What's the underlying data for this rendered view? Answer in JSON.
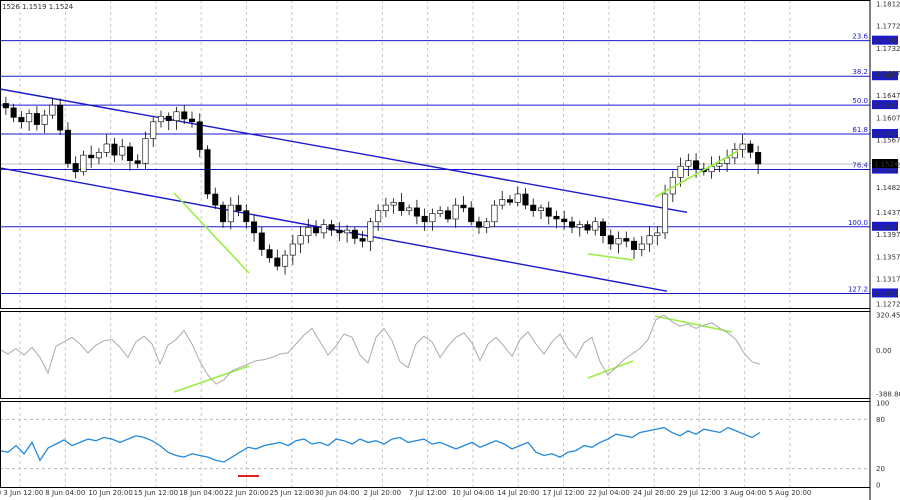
{
  "header": {
    "ohlc": "1526 1.1519 1.1524"
  },
  "colors": {
    "candle": "#000000",
    "channel": "#1a1acc",
    "level": "#1a1acc",
    "divergence": "#99ee44",
    "cci": "#aaaaaa",
    "rsi": "#2288dd",
    "rsi_marker": "#dd2222",
    "tag_bg": "#1a1acc"
  },
  "chart_data": [
    {
      "type": "candlestick",
      "ylim": [
        1.1272,
        1.1812
      ],
      "yticks": [
        "1.1812",
        "1.1772",
        "1.1732",
        "1.1687",
        "1.1647",
        "1.1607",
        "1.1567",
        "1.1522",
        "1.1482",
        "1.1437",
        "1.1397",
        "1.1357",
        "1.1317",
        "1.1272"
      ],
      "close_path": [
        1.1625,
        1.1608,
        1.16,
        1.1615,
        1.1595,
        1.1612,
        1.163,
        1.1585,
        1.1525,
        1.151,
        1.154,
        1.1535,
        1.1545,
        1.156,
        1.154,
        1.1555,
        1.153,
        1.1525,
        1.157,
        1.16,
        1.161,
        1.1602,
        1.1618,
        1.1605,
        1.16,
        1.155,
        1.147,
        1.145,
        1.142,
        1.145,
        1.144,
        1.142,
        1.14,
        1.137,
        1.1355,
        1.134,
        1.136,
        1.138,
        1.1395,
        1.141,
        1.14,
        1.1415,
        1.1405,
        1.14,
        1.1405,
        1.139,
        1.1385,
        1.142,
        1.144,
        1.145,
        1.1455,
        1.144,
        1.1445,
        1.143,
        1.142,
        1.1435,
        1.144,
        1.1425,
        1.145,
        1.1445,
        1.142,
        1.141,
        1.142,
        1.145,
        1.146,
        1.1455,
        1.147,
        1.145,
        1.144,
        1.1445,
        1.143,
        1.1425,
        1.142,
        1.141,
        1.1415,
        1.1405,
        1.142,
        1.1395,
        1.138,
        1.139,
        1.1385,
        1.137,
        1.138,
        1.1395,
        1.14,
        1.147,
        1.15,
        1.152,
        1.153,
        1.1515,
        1.151,
        1.152,
        1.1525,
        1.1535,
        1.155,
        1.156,
        1.1545,
        1.1524
      ],
      "levels": [
        {
          "label": "23.6",
          "price": 1.1746,
          "tag": "1.1746"
        },
        {
          "label": "38.2",
          "price": 1.1682,
          "tag": "1.1682"
        },
        {
          "label": "50.0",
          "price": 1.163,
          "tag": "1.1630"
        },
        {
          "label": "61.8",
          "price": 1.1578,
          "tag": "1.1578"
        },
        {
          "label": "76.4",
          "price": 1.1514,
          "tag": "1.1514"
        },
        {
          "label": "100.0",
          "price": 1.1411,
          "tag": "1.1411"
        },
        {
          "label": "127.2",
          "price": 1.1291,
          "tag": "1.1291"
        }
      ],
      "current_price": "1.1524",
      "channel": {
        "upper": [
          [
            0,
            1.1659
          ],
          [
            687,
            1.1437
          ]
        ],
        "lower": [
          [
            0,
            1.1517
          ],
          [
            667,
            1.1295
          ]
        ]
      }
    },
    {
      "type": "line",
      "name": "",
      "ylim": [
        -388.803,
        320.4558
      ],
      "yticks": [
        "320.4558",
        "0.00",
        "-388.803"
      ],
      "values": [
        10,
        -30,
        20,
        -40,
        30,
        -60,
        -200,
        40,
        80,
        120,
        60,
        -20,
        50,
        90,
        100,
        30,
        -60,
        80,
        130,
        60,
        -120,
        50,
        100,
        180,
        60,
        -100,
        -220,
        -300,
        -260,
        -180,
        -150,
        -120,
        -90,
        -80,
        -60,
        -30,
        -20,
        60,
        140,
        200,
        80,
        -40,
        40,
        150,
        120,
        -40,
        -110,
        120,
        200,
        90,
        -100,
        -150,
        60,
        130,
        80,
        -60,
        40,
        120,
        160,
        70,
        -90,
        60,
        120,
        40,
        -50,
        100,
        170,
        60,
        -30,
        80,
        150,
        20,
        -60,
        70,
        120,
        -100,
        -220,
        -150,
        -80,
        -30,
        20,
        100,
        280,
        320,
        260,
        220,
        240,
        200,
        230,
        250,
        200,
        160,
        100,
        -20,
        -100,
        -120
      ]
    },
    {
      "type": "line",
      "name": "",
      "ylim": [
        20,
        100
      ],
      "yticks": [
        "100",
        "80",
        "20",
        "0"
      ],
      "values": [
        42,
        40,
        48,
        38,
        52,
        30,
        45,
        50,
        55,
        48,
        52,
        56,
        54,
        58,
        56,
        52,
        56,
        60,
        58,
        54,
        48,
        40,
        36,
        34,
        38,
        36,
        34,
        30,
        28,
        34,
        40,
        46,
        44,
        48,
        50,
        52,
        48,
        54,
        56,
        50,
        52,
        48,
        56,
        54,
        50,
        56,
        52,
        54,
        50,
        56,
        58,
        52,
        54,
        56,
        50,
        52,
        48,
        44,
        48,
        52,
        46,
        50,
        54,
        50,
        44,
        48,
        52,
        40,
        36,
        38,
        34,
        40,
        42,
        48,
        46,
        52,
        56,
        62,
        60,
        58,
        64,
        66,
        68,
        70,
        64,
        60,
        66,
        62,
        68,
        66,
        64,
        70,
        66,
        62,
        58,
        64
      ]
    }
  ],
  "x_axis": [
    "0 3 Jun 12:00",
    "8 Jun 04:00",
    "10 Jun 20:00",
    "15 Jun 12:00",
    "18 Jun 04:00",
    "22 Jun 20:00",
    "25 Jun 12:00",
    "30 Jun 04:00",
    "2 Jul 20:00",
    "7 Jul 12:00",
    "10 Jul 04:00",
    "14 Jul 20:00",
    "17 Jul 12:00",
    "22 Jul 04:00",
    "24 Jul 20:00",
    "29 Jul 12:00",
    "3 Aug 04:00",
    "5 Aug 20:00"
  ]
}
